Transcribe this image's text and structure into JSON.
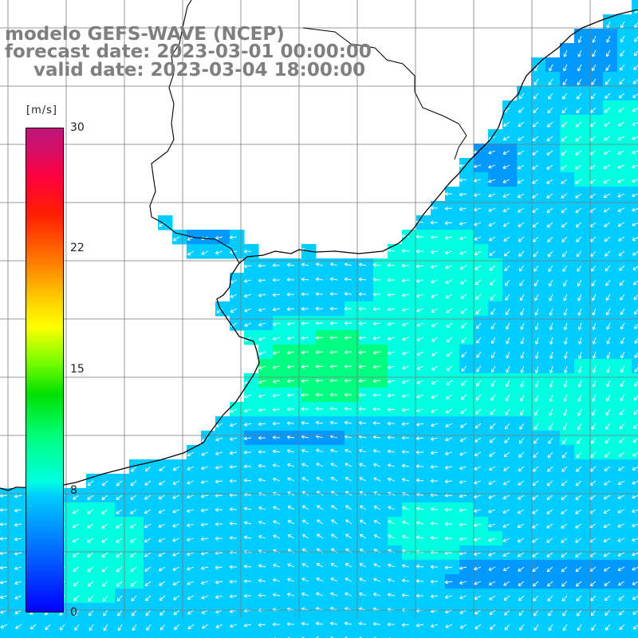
{
  "title": {
    "model": "modelo GEFS-WAVE (NCEP)",
    "forecast": "forecast date: 2023-03-01 00:00:00",
    "valid": "valid date: 2023-03-04 18:00:00"
  },
  "colorbar": {
    "unit": "[m/s]",
    "ticks": [
      "30",
      "22",
      "15",
      "8",
      "0"
    ],
    "tick_values": [
      30,
      22,
      15,
      8,
      0
    ],
    "min": 0,
    "max": 30,
    "colors": [
      "#0000ff",
      "#0055ff",
      "#0099ff",
      "#00ccff",
      "#00ffe0",
      "#00ff80",
      "#00e000",
      "#80ff00",
      "#ffff00",
      "#ffc000",
      "#ff8000",
      "#ff2000",
      "#ff0040",
      "#c0167a"
    ]
  },
  "map": {
    "land_color": "#ffffff",
    "coastline_color": "#000000",
    "grid_color": "#7a7a7a",
    "arrow_color": "#ffffff",
    "field_legend_min": "#0000ff",
    "field_legend_mid": "#00ffe0",
    "field_legend_high": "#00ff50"
  }
}
